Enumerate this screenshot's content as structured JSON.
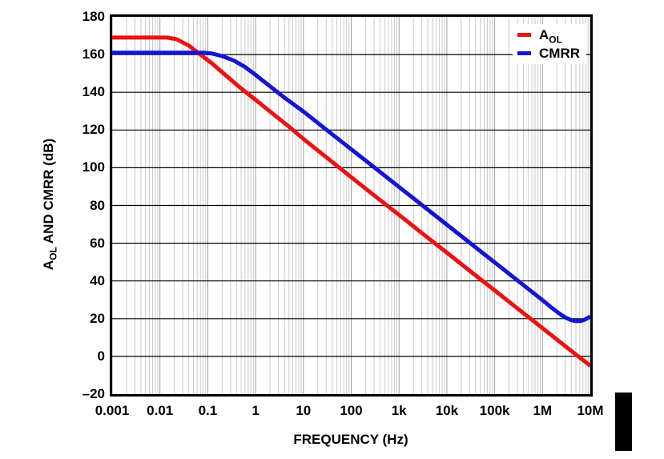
{
  "chart_data": {
    "type": "line",
    "x_axis": {
      "label": "FREQUENCY (Hz)",
      "scale": "log",
      "min": 0.001,
      "max": 10000000,
      "tick_labels": [
        "0.001",
        "0.01",
        "0.1",
        "1",
        "10",
        "100",
        "1k",
        "10k",
        "100k",
        "1M",
        "10M"
      ]
    },
    "y_axis": {
      "label": "AOL AND CMRR (dB)",
      "label_main": "A",
      "label_sub": "OL",
      "label_rest": " AND CMRR (dB)",
      "min": -20,
      "max": 180,
      "step": 20,
      "tick_labels": [
        "180",
        "160",
        "140",
        "120",
        "100",
        "80",
        "60",
        "40",
        "20",
        "0",
        "–20"
      ]
    },
    "grid": {
      "vertical_minor_color": "#c9c9c9",
      "vertical_major_color": "#9e9e9e",
      "horizontal_color": "#000000"
    },
    "legend": {
      "position": "top-right",
      "items": [
        {
          "label_main": "A",
          "label_sub": "OL",
          "color": "#ed1111"
        },
        {
          "label_main": "CMRR",
          "label_sub": "",
          "color": "#1414d6"
        }
      ]
    },
    "series": [
      {
        "name": "AOL",
        "color": "#ed1111",
        "points": [
          [
            0.001,
            169
          ],
          [
            0.014,
            169
          ],
          [
            0.022,
            168.2
          ],
          [
            0.04,
            164.8
          ],
          [
            0.07,
            160
          ],
          [
            0.12,
            155.5
          ],
          [
            0.25,
            148.5
          ],
          [
            0.5,
            142
          ],
          [
            1,
            136
          ],
          [
            2,
            129.8
          ],
          [
            5,
            121.8
          ],
          [
            10,
            115.3
          ],
          [
            30,
            105.6
          ],
          [
            100,
            95
          ],
          [
            300,
            85.4
          ],
          [
            1000,
            75
          ],
          [
            3000,
            65.4
          ],
          [
            10000,
            55
          ],
          [
            30000,
            45.4
          ],
          [
            100000,
            35
          ],
          [
            300000,
            25.4
          ],
          [
            1000000,
            15
          ],
          [
            3000000,
            5.4
          ],
          [
            10000000,
            -5
          ]
        ]
      },
      {
        "name": "CMRR",
        "color": "#1414d6",
        "points": [
          [
            0.001,
            161
          ],
          [
            0.08,
            161
          ],
          [
            0.12,
            160.6
          ],
          [
            0.2,
            159.2
          ],
          [
            0.35,
            156.8
          ],
          [
            0.6,
            153.4
          ],
          [
            1,
            149.2
          ],
          [
            2,
            143.2
          ],
          [
            4,
            137.2
          ],
          [
            10,
            129.8
          ],
          [
            30,
            120.2
          ],
          [
            100,
            109.8
          ],
          [
            310,
            100
          ],
          [
            1000,
            89.8
          ],
          [
            3100,
            80
          ],
          [
            10000,
            69.8
          ],
          [
            31000,
            60
          ],
          [
            100000,
            49.8
          ],
          [
            310000,
            40
          ],
          [
            1000000,
            29.8
          ],
          [
            1600000,
            25.5
          ],
          [
            2300000,
            22.5
          ],
          [
            3000000,
            20.6
          ],
          [
            4000000,
            19.2
          ],
          [
            5000000,
            18.7
          ],
          [
            6500000,
            18.8
          ],
          [
            8000000,
            19.7
          ],
          [
            10000000,
            21.2
          ]
        ]
      }
    ]
  },
  "decorations": {
    "page_edge_marker_color": "#000000"
  }
}
